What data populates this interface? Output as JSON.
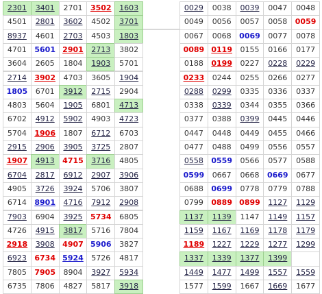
{
  "tables": [
    {
      "rows": [
        [
          {
            "t": "2301",
            "u": true,
            "g": true
          },
          {
            "t": "3401",
            "u": true,
            "g": true
          },
          {
            "t": "2701"
          },
          {
            "t": "3502",
            "u": true,
            "c": "red"
          },
          {
            "t": "1603",
            "u": true,
            "g": true
          }
        ],
        [
          {
            "t": "4501"
          },
          {
            "t": "2801",
            "u": true
          },
          {
            "t": "3602",
            "u": true
          },
          {
            "t": "4502"
          },
          {
            "t": "3701",
            "u": true,
            "g": true
          }
        ],
        [
          {
            "t": "8937",
            "u": true
          },
          {
            "t": "4601"
          },
          {
            "t": "2703",
            "u": true
          },
          {
            "t": "4503"
          },
          {
            "t": "1803",
            "u": true,
            "g": true
          }
        ],
        [
          {
            "t": "4701"
          },
          {
            "t": "5601",
            "c": "blue"
          },
          {
            "t": "2901",
            "u": true,
            "c": "red"
          },
          {
            "t": "2713",
            "u": true,
            "g": true
          },
          {
            "t": "3802"
          }
        ],
        [
          {
            "t": "3604"
          },
          {
            "t": "2605"
          },
          {
            "t": "1804"
          },
          {
            "t": "1903",
            "u": true,
            "g": true
          },
          {
            "t": "5701"
          }
        ],
        [
          {
            "t": "2714",
            "u": true
          },
          {
            "t": "3902",
            "u": true,
            "c": "red"
          },
          {
            "t": "4703"
          },
          {
            "t": "3605"
          },
          {
            "t": "1904",
            "u": true
          }
        ],
        [
          {
            "t": "1805",
            "c": "blue"
          },
          {
            "t": "6701"
          },
          {
            "t": "3912",
            "u": true,
            "g": true
          },
          {
            "t": "2715",
            "u": true
          },
          {
            "t": "2904"
          }
        ],
        [
          {
            "t": "4803"
          },
          {
            "t": "5604"
          },
          {
            "t": "1905",
            "u": true
          },
          {
            "t": "6801"
          },
          {
            "t": "4713",
            "u": true,
            "g": true
          }
        ],
        [
          {
            "t": "6702"
          },
          {
            "t": "4912",
            "u": true
          },
          {
            "t": "5902",
            "u": true
          },
          {
            "t": "4903"
          },
          {
            "t": "4723",
            "u": true
          }
        ],
        [
          {
            "t": "5704"
          },
          {
            "t": "1906",
            "u": true,
            "c": "red"
          },
          {
            "t": "1807"
          },
          {
            "t": "6712",
            "u": true
          },
          {
            "t": "6703"
          }
        ],
        [
          {
            "t": "2915",
            "u": true
          },
          {
            "t": "2906",
            "u": true
          },
          {
            "t": "3905",
            "u": true
          },
          {
            "t": "3725",
            "u": true
          },
          {
            "t": "2807"
          }
        ],
        [
          {
            "t": "1907",
            "u": true,
            "c": "red"
          },
          {
            "t": "4913",
            "u": true,
            "g": true
          },
          {
            "t": "4715",
            "c": "red"
          },
          {
            "t": "3716",
            "u": true,
            "g": true
          },
          {
            "t": "4805"
          }
        ],
        [
          {
            "t": "6704",
            "u": true
          },
          {
            "t": "2817",
            "u": true
          },
          {
            "t": "6912",
            "u": true
          },
          {
            "t": "2907",
            "u": true
          },
          {
            "t": "3906",
            "u": true
          }
        ],
        [
          {
            "t": "4905"
          },
          {
            "t": "3726",
            "u": true
          },
          {
            "t": "3924",
            "u": true
          },
          {
            "t": "5706"
          },
          {
            "t": "3807"
          }
        ],
        [
          {
            "t": "6714"
          },
          {
            "t": "8901",
            "u": true,
            "c": "blue"
          },
          {
            "t": "4716",
            "u": true
          },
          {
            "t": "7912",
            "u": true
          },
          {
            "t": "2908",
            "u": true
          }
        ],
        [
          {
            "t": "7903",
            "u": true
          },
          {
            "t": "6904"
          },
          {
            "t": "3925",
            "u": true
          },
          {
            "t": "5734",
            "c": "red"
          },
          {
            "t": "6805"
          }
        ],
        [
          {
            "t": "4726"
          },
          {
            "t": "4915",
            "u": true
          },
          {
            "t": "3817",
            "u": true,
            "g": true
          },
          {
            "t": "5716"
          },
          {
            "t": "7804"
          }
        ],
        [
          {
            "t": "2918",
            "u": true,
            "c": "red"
          },
          {
            "t": "3908",
            "u": true
          },
          {
            "t": "4907",
            "c": "red"
          },
          {
            "t": "5906",
            "c": "blue"
          },
          {
            "t": "3827"
          }
        ],
        [
          {
            "t": "6923",
            "u": true
          },
          {
            "t": "6734",
            "c": "red"
          },
          {
            "t": "5924",
            "u": true,
            "c": "blue"
          },
          {
            "t": "5726"
          },
          {
            "t": "4817"
          }
        ],
        [
          {
            "t": "7805"
          },
          {
            "t": "7905",
            "c": "red"
          },
          {
            "t": "8904"
          },
          {
            "t": "3927",
            "u": true
          },
          {
            "t": "5934",
            "u": true
          }
        ],
        [
          {
            "t": "6735"
          },
          {
            "t": "7806"
          },
          {
            "t": "4827"
          },
          {
            "t": "5817"
          },
          {
            "t": "3918",
            "u": true,
            "g": true
          }
        ]
      ]
    },
    {
      "rows": [
        [
          {
            "t": "0029",
            "u": true
          },
          {
            "t": "0038"
          },
          {
            "t": "0039",
            "u": true
          },
          {
            "t": "0047"
          },
          {
            "t": "0048"
          }
        ],
        [
          {
            "t": "0049"
          },
          {
            "t": "0056"
          },
          {
            "t": "0057"
          },
          {
            "t": "0058"
          },
          {
            "t": "0059",
            "c": "red"
          }
        ],
        [
          {
            "t": "0067"
          },
          {
            "t": "0068"
          },
          {
            "t": "0069",
            "c": "blue"
          },
          {
            "t": "0077"
          },
          {
            "t": "0078"
          }
        ],
        [
          {
            "t": "0089",
            "c": "red"
          },
          {
            "t": "0119",
            "u": true,
            "c": "red"
          },
          {
            "t": "0155"
          },
          {
            "t": "0166"
          },
          {
            "t": "0177"
          }
        ],
        [
          {
            "t": "0188"
          },
          {
            "t": "0199",
            "u": true,
            "c": "red"
          },
          {
            "t": "0227"
          },
          {
            "t": "0228",
            "u": true
          },
          {
            "t": "0229",
            "u": true
          }
        ],
        [
          {
            "t": "0233",
            "u": true,
            "c": "red"
          },
          {
            "t": "0244"
          },
          {
            "t": "0255"
          },
          {
            "t": "0266"
          },
          {
            "t": "0277"
          }
        ],
        [
          {
            "t": "0288",
            "u": true
          },
          {
            "t": "0299",
            "u": true
          },
          {
            "t": "0335"
          },
          {
            "t": "0336"
          },
          {
            "t": "0337"
          }
        ],
        [
          {
            "t": "0338"
          },
          {
            "t": "0339",
            "u": true
          },
          {
            "t": "0344"
          },
          {
            "t": "0355"
          },
          {
            "t": "0366"
          }
        ],
        [
          {
            "t": "0377"
          },
          {
            "t": "0388"
          },
          {
            "t": "0399",
            "u": true
          },
          {
            "t": "0445"
          },
          {
            "t": "0446"
          }
        ],
        [
          {
            "t": "0447"
          },
          {
            "t": "0448"
          },
          {
            "t": "0449"
          },
          {
            "t": "0455"
          },
          {
            "t": "0466"
          }
        ],
        [
          {
            "t": "0477"
          },
          {
            "t": "0488"
          },
          {
            "t": "0499"
          },
          {
            "t": "0556"
          },
          {
            "t": "0557"
          }
        ],
        [
          {
            "t": "0558",
            "u": true
          },
          {
            "t": "0559",
            "c": "blue"
          },
          {
            "t": "0566"
          },
          {
            "t": "0577"
          },
          {
            "t": "0588"
          }
        ],
        [
          {
            "t": "0599",
            "c": "blue"
          },
          {
            "t": "0667"
          },
          {
            "t": "0668"
          },
          {
            "t": "0669",
            "c": "blue"
          },
          {
            "t": "0677"
          }
        ],
        [
          {
            "t": "0688"
          },
          {
            "t": "0699",
            "c": "blue"
          },
          {
            "t": "0778"
          },
          {
            "t": "0779"
          },
          {
            "t": "0788"
          }
        ],
        [
          {
            "t": "0799"
          },
          {
            "t": "0889",
            "c": "red"
          },
          {
            "t": "0899",
            "c": "red"
          },
          {
            "t": "1127",
            "u": true
          },
          {
            "t": "1129",
            "u": true
          }
        ],
        [
          {
            "t": "1137",
            "u": true,
            "g": true
          },
          {
            "t": "1139",
            "u": true,
            "g": true
          },
          {
            "t": "1147"
          },
          {
            "t": "1149",
            "u": true
          },
          {
            "t": "1157",
            "u": true
          }
        ],
        [
          {
            "t": "1159",
            "u": true
          },
          {
            "t": "1167",
            "u": true
          },
          {
            "t": "1169",
            "u": true
          },
          {
            "t": "1178",
            "u": true
          },
          {
            "t": "1179",
            "u": true
          }
        ],
        [
          {
            "t": "1189",
            "u": true,
            "c": "red"
          },
          {
            "t": "1227",
            "u": true
          },
          {
            "t": "1229",
            "u": true
          },
          {
            "t": "1277",
            "u": true
          },
          {
            "t": "1299",
            "u": true
          }
        ],
        [
          {
            "t": "1337",
            "u": true,
            "g": true
          },
          {
            "t": "1339",
            "u": true,
            "g": true
          },
          {
            "t": "1377",
            "u": true,
            "g": true
          },
          {
            "t": "1399",
            "u": true,
            "g": true
          },
          null
        ],
        [
          {
            "t": "1449",
            "u": true
          },
          {
            "t": "1477",
            "u": true
          },
          {
            "t": "1499",
            "u": true
          },
          {
            "t": "1557",
            "u": true
          },
          {
            "t": "1559",
            "u": true
          }
        ],
        [
          {
            "t": "1577"
          },
          {
            "t": "1599",
            "u": true
          },
          {
            "t": "1667"
          },
          {
            "t": "1669",
            "u": true
          },
          {
            "t": "1677"
          }
        ]
      ]
    }
  ]
}
